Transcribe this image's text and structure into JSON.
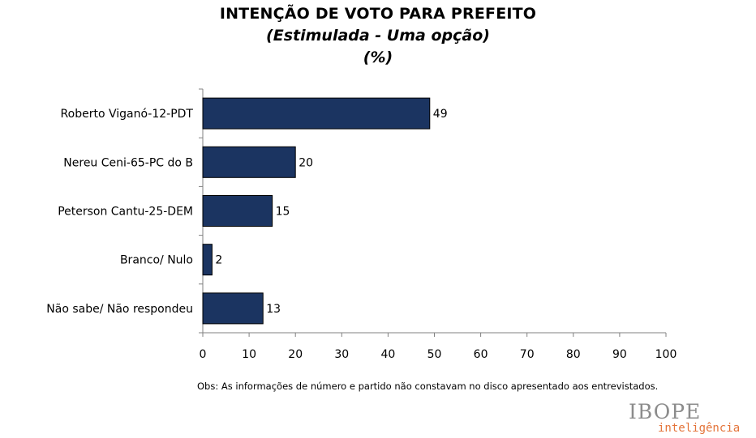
{
  "chart_data": {
    "type": "bar",
    "orientation": "horizontal",
    "title": "INTENÇÃO DE VOTO PARA PREFEITO",
    "subtitle": "(Estimulada - Uma opção)",
    "unit_label": "(%)",
    "categories": [
      "Roberto Viganó-12-PDT",
      "Nereu Ceni-65-PC do B",
      "Peterson Cantu-25-DEM",
      "Branco/ Nulo",
      "Não sabe/ Não respondeu"
    ],
    "values": [
      49,
      20,
      15,
      2,
      13
    ],
    "data_labels": [
      "49",
      "20",
      "15",
      "2",
      "13"
    ],
    "xlim": [
      0,
      100
    ],
    "xticks": [
      0,
      10,
      20,
      30,
      40,
      50,
      60,
      70,
      80,
      90,
      100
    ],
    "bar_color": "#1b3461",
    "grid": false
  },
  "footnote": "Obs: As informações de número e partido não constavam no disco apresentado aos entrevistados.",
  "logo": {
    "name": "IBOPE",
    "tagline": "inteligência",
    "name_color": "#8c8c8c",
    "tagline_color": "#e4743a"
  }
}
